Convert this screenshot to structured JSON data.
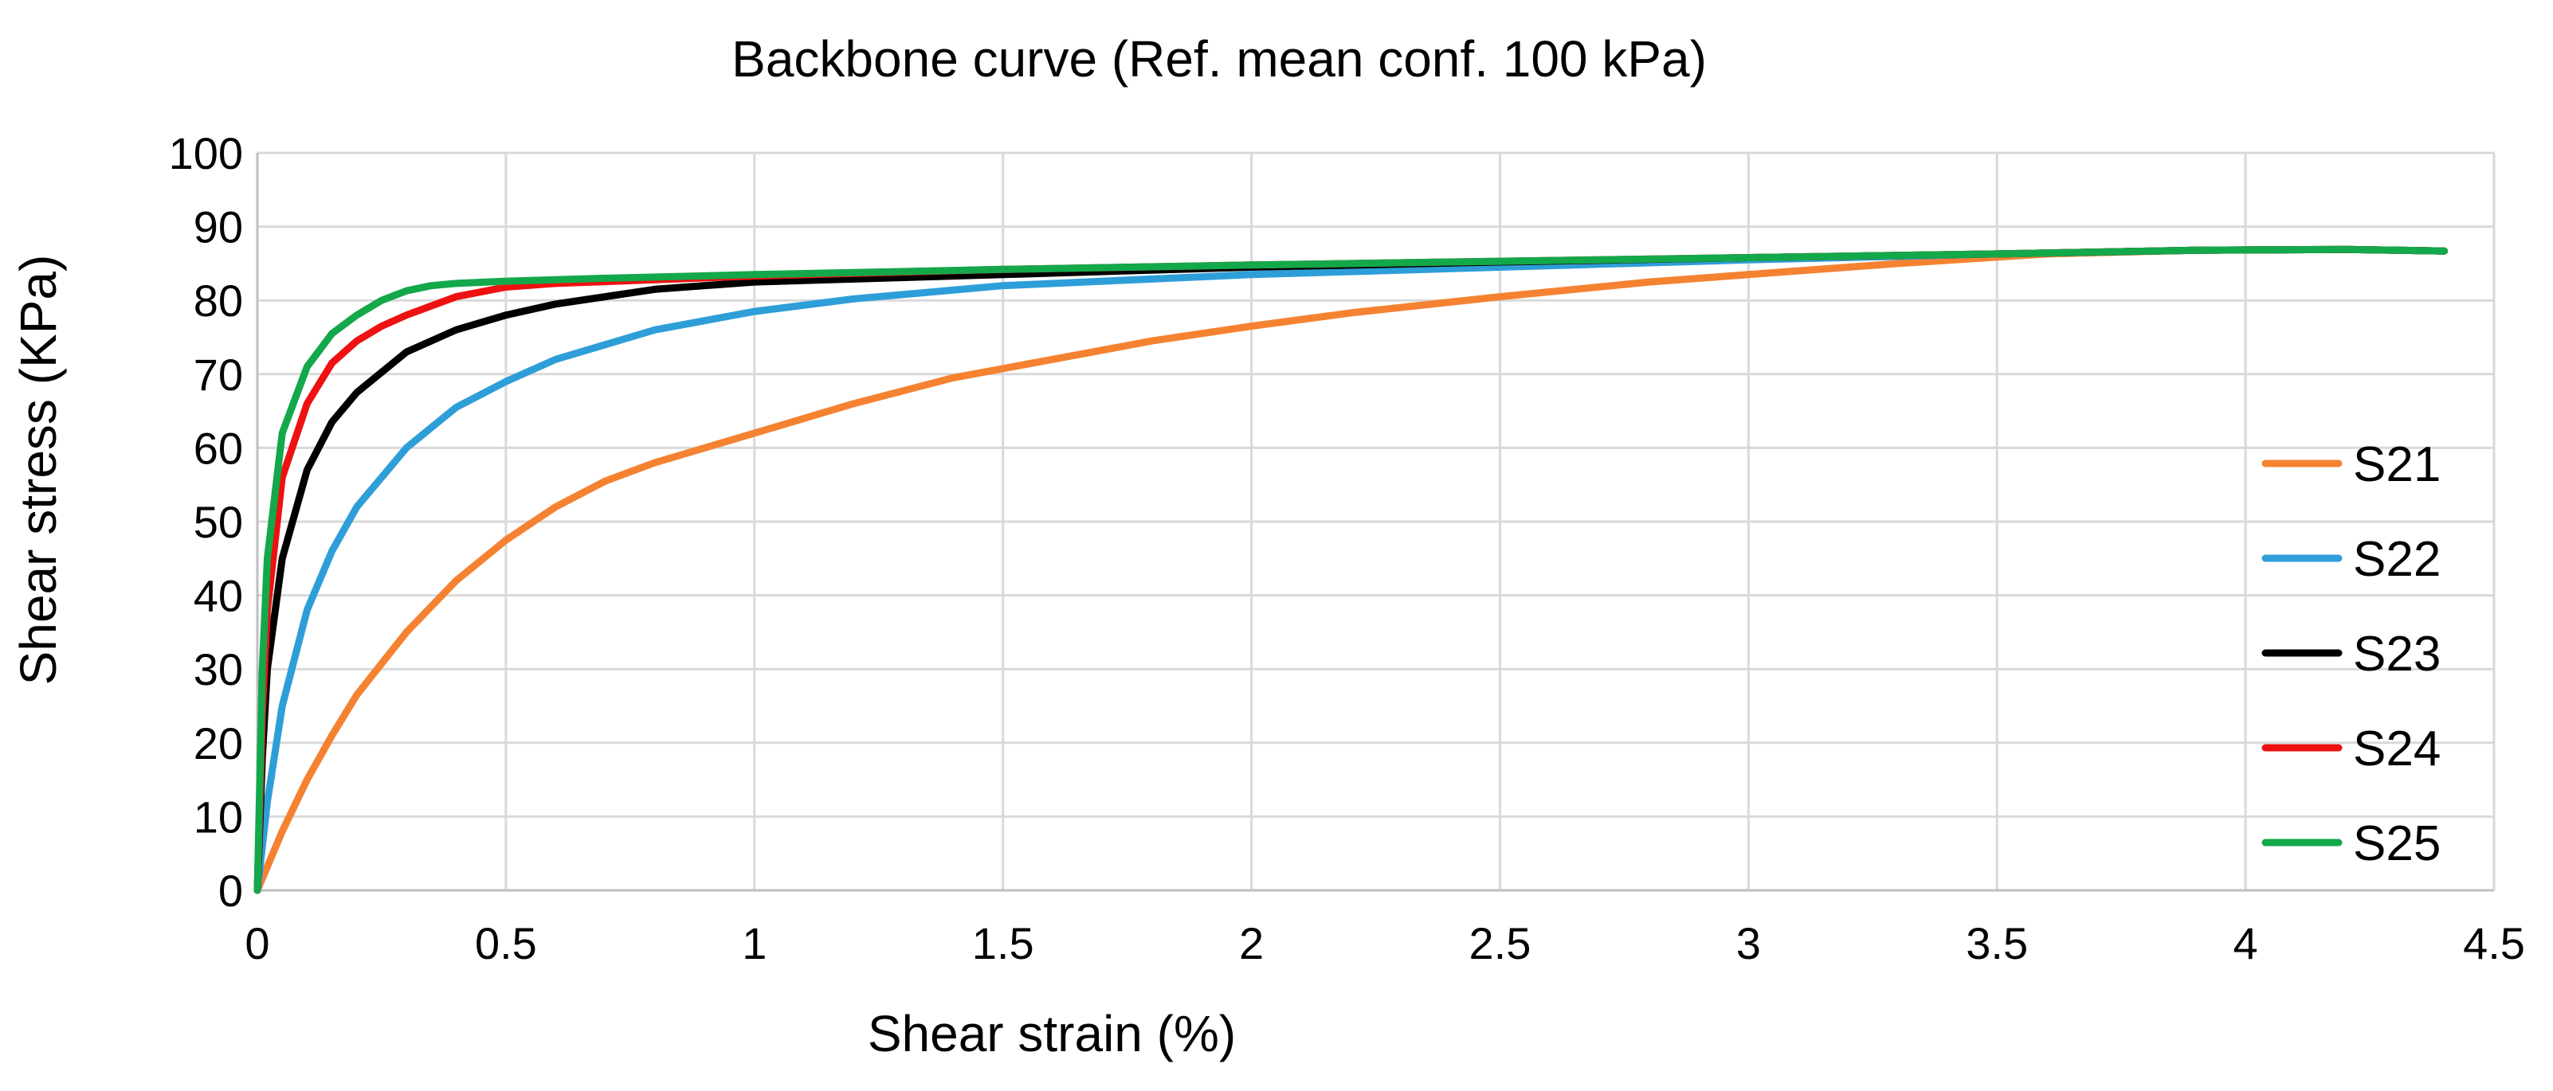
{
  "chart_data": {
    "type": "line",
    "title": "Backbone curve (Ref. mean conf. 100 kPa)",
    "xlabel": "Shear strain (%)",
    "ylabel": "Shear stress (KPa)",
    "xlim": [
      0,
      4.5
    ],
    "ylim": [
      0,
      100
    ],
    "x_ticks": [
      "0",
      "0.5",
      "1",
      "1.5",
      "2",
      "2.5",
      "3",
      "3.5",
      "4",
      "4.5"
    ],
    "y_ticks": [
      "0",
      "10",
      "20",
      "30",
      "40",
      "50",
      "60",
      "70",
      "80",
      "90",
      "100"
    ],
    "grid": true,
    "legend_position": "right",
    "series": [
      {
        "name": "S21",
        "color": "#f58231",
        "x": [
          0,
          0.05,
          0.1,
          0.15,
          0.2,
          0.3,
          0.4,
          0.5,
          0.6,
          0.7,
          0.8,
          0.9,
          1.0,
          1.2,
          1.4,
          1.6,
          1.8,
          2.0,
          2.2,
          2.5,
          2.8,
          3.0,
          3.3,
          3.6,
          3.9,
          4.2,
          4.4
        ],
        "y": [
          0,
          8,
          15,
          21,
          26.5,
          35,
          42,
          47.5,
          52,
          55.5,
          58,
          60,
          62,
          66,
          69.5,
          72,
          74.5,
          76.5,
          78.3,
          80.5,
          82.5,
          83.5,
          85,
          86.3,
          86.8,
          86.9,
          86.7
        ]
      },
      {
        "name": "S22",
        "color": "#2e9ed8",
        "x": [
          0,
          0.02,
          0.05,
          0.1,
          0.15,
          0.2,
          0.3,
          0.4,
          0.5,
          0.6,
          0.8,
          1.0,
          1.2,
          1.5,
          2.0,
          2.5,
          3.0,
          3.5,
          3.9,
          4.2,
          4.4
        ],
        "y": [
          0,
          12,
          25,
          38,
          46,
          52,
          60,
          65.5,
          69,
          72,
          76,
          78.5,
          80.2,
          82,
          83.5,
          84.5,
          85.5,
          86.3,
          86.8,
          86.9,
          86.7
        ]
      },
      {
        "name": "S23",
        "color": "#000000",
        "x": [
          0,
          0.01,
          0.02,
          0.05,
          0.1,
          0.15,
          0.2,
          0.3,
          0.4,
          0.5,
          0.6,
          0.8,
          1.0,
          1.5,
          2.0,
          2.5,
          3.0,
          3.5,
          3.9,
          4.2,
          4.4
        ],
        "y": [
          0,
          18,
          30,
          45,
          57,
          63.5,
          67.5,
          73,
          76,
          78,
          79.5,
          81.5,
          82.5,
          83.5,
          84.5,
          85.2,
          85.8,
          86.3,
          86.8,
          86.9,
          86.7
        ]
      },
      {
        "name": "S24",
        "color": "#ee1111",
        "x": [
          0,
          0.01,
          0.02,
          0.05,
          0.1,
          0.15,
          0.2,
          0.25,
          0.3,
          0.4,
          0.5,
          0.6,
          0.8,
          1.0,
          1.5,
          2.0,
          2.5,
          3.0,
          3.5,
          3.9,
          4.2,
          4.4
        ],
        "y": [
          0,
          24,
          38,
          56,
          66,
          71.5,
          74.5,
          76.5,
          78,
          80.5,
          81.8,
          82.3,
          82.8,
          83.3,
          84.2,
          84.8,
          85.3,
          85.8,
          86.3,
          86.8,
          86.9,
          86.7
        ]
      },
      {
        "name": "S25",
        "color": "#13a84a",
        "x": [
          0,
          0.01,
          0.02,
          0.05,
          0.1,
          0.15,
          0.2,
          0.25,
          0.3,
          0.35,
          0.4,
          0.5,
          0.7,
          1.0,
          1.5,
          2.0,
          2.5,
          3.0,
          3.5,
          3.9,
          4.2,
          4.4
        ],
        "y": [
          0,
          30,
          45,
          62,
          71,
          75.5,
          78,
          80,
          81.3,
          82,
          82.3,
          82.6,
          83,
          83.5,
          84.2,
          84.8,
          85.3,
          85.8,
          86.3,
          86.8,
          86.9,
          86.7
        ]
      }
    ]
  }
}
